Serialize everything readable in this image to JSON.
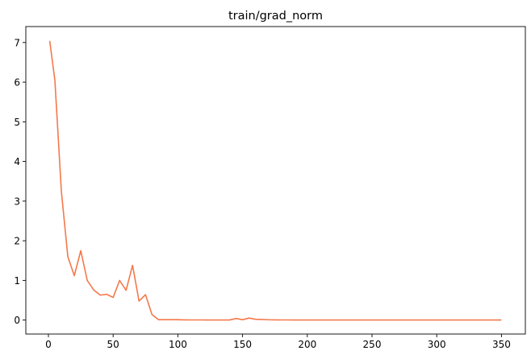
{
  "chart_data": {
    "type": "line",
    "title": "train/grad_norm",
    "xlabel": "",
    "ylabel": "",
    "xlim": [
      -17.45,
      368.45
    ],
    "ylim": [
      -0.352,
      7.402
    ],
    "grid": false,
    "legend": "none",
    "x_ticks": [
      0,
      50,
      100,
      150,
      200,
      250,
      300,
      350
    ],
    "y_ticks": [
      0,
      1,
      2,
      3,
      4,
      5,
      6,
      7
    ],
    "series": [
      {
        "color": "#f4784a",
        "x": [
          1,
          5,
          10,
          15,
          20,
          25,
          30,
          35,
          40,
          45,
          50,
          55,
          60,
          65,
          70,
          75,
          80,
          85,
          90,
          95,
          100,
          105,
          110,
          115,
          120,
          125,
          130,
          135,
          140,
          145,
          150,
          155,
          160,
          165,
          170,
          175,
          180,
          185,
          190,
          195,
          200,
          210,
          220,
          230,
          240,
          250,
          260,
          270,
          280,
          290,
          300,
          310,
          320,
          330,
          340,
          350
        ],
        "y": [
          7.04,
          6.05,
          3.25,
          1.6,
          1.12,
          1.75,
          1.0,
          0.76,
          0.63,
          0.65,
          0.57,
          1.0,
          0.75,
          1.38,
          0.48,
          0.64,
          0.14,
          0.01,
          0.01,
          0.01,
          0.01,
          0.005,
          0.003,
          0.003,
          0.003,
          0.002,
          0.002,
          0.002,
          0.002,
          0.04,
          0.01,
          0.05,
          0.02,
          0.015,
          0.008,
          0.005,
          0.003,
          0.003,
          0.002,
          0.002,
          0.002,
          0.002,
          0.002,
          0.002,
          0.002,
          0.002,
          0.002,
          0.002,
          0.002,
          0.002,
          0.002,
          0.002,
          0.002,
          0.002,
          0.002,
          0.002
        ]
      }
    ]
  }
}
